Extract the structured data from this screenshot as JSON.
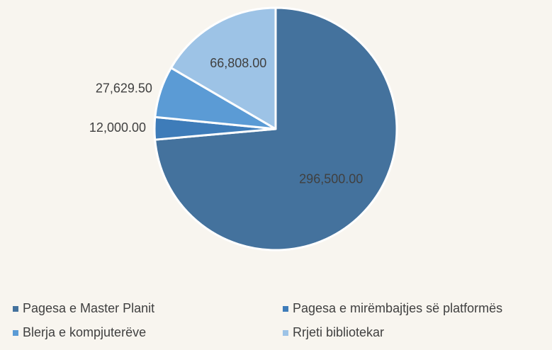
{
  "chart_data": {
    "type": "pie",
    "categories": [
      "Pagesa e Master Planit",
      "Pagesa e mirëmbajtjes së platformës",
      "Blerja e kompjuterëve",
      "Rrjeti bibliotekar"
    ],
    "values": [
      296500,
      12000,
      27629.5,
      66808
    ],
    "value_labels": [
      "296,500.00",
      "12,000.00",
      "27,629.50",
      "66,808.00"
    ],
    "colors": [
      "#44729d",
      "#3e7cb9",
      "#5b9bd5",
      "#9dc3e6"
    ],
    "legend": "bottom"
  }
}
